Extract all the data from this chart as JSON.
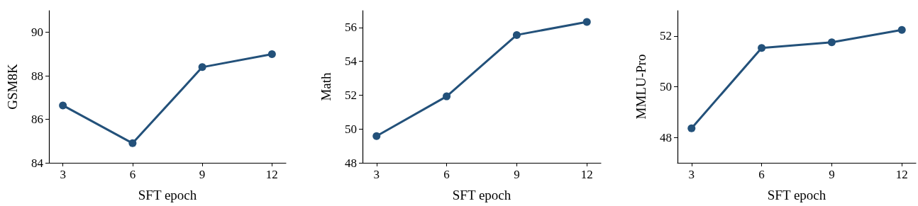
{
  "chart_data": [
    {
      "type": "line",
      "x": [
        3,
        6,
        9,
        12
      ],
      "xlabel": "SFT epoch",
      "ylabel": "GSM8K",
      "xlim": [
        2.4,
        12.6
      ],
      "xticks": [
        3,
        6,
        9,
        12
      ],
      "ylim": [
        84,
        91
      ],
      "yticks": [
        84,
        86,
        88,
        90
      ],
      "grid": false,
      "marker": "circle",
      "line_style": "solid",
      "series": [
        {
          "color": "#23517a",
          "values": [
            86.64,
            84.9,
            88.4,
            89.0
          ]
        }
      ]
    },
    {
      "type": "line",
      "x": [
        3,
        6,
        9,
        12
      ],
      "xlabel": "SFT epoch",
      "ylabel": "Math",
      "xlim": [
        2.4,
        12.6
      ],
      "xticks": [
        3,
        6,
        9,
        12
      ],
      "ylim": [
        48,
        57
      ],
      "yticks": [
        48,
        50,
        52,
        54,
        56
      ],
      "grid": false,
      "marker": "circle",
      "line_style": "solid",
      "series": [
        {
          "color": "#23517a",
          "values": [
            49.58,
            51.93,
            55.56,
            56.33
          ]
        }
      ]
    },
    {
      "type": "line",
      "x": [
        3,
        6,
        9,
        12
      ],
      "xlabel": "SFT epoch",
      "ylabel": "MMLU-Pro",
      "xlim": [
        2.4,
        12.6
      ],
      "xticks": [
        3,
        6,
        9,
        12
      ],
      "ylim": [
        47,
        53
      ],
      "yticks": [
        48,
        50,
        52
      ],
      "grid": false,
      "marker": "circle",
      "line_style": "solid",
      "series": [
        {
          "color": "#23517a",
          "values": [
            48.36,
            51.53,
            51.75,
            52.24
          ]
        }
      ]
    }
  ]
}
